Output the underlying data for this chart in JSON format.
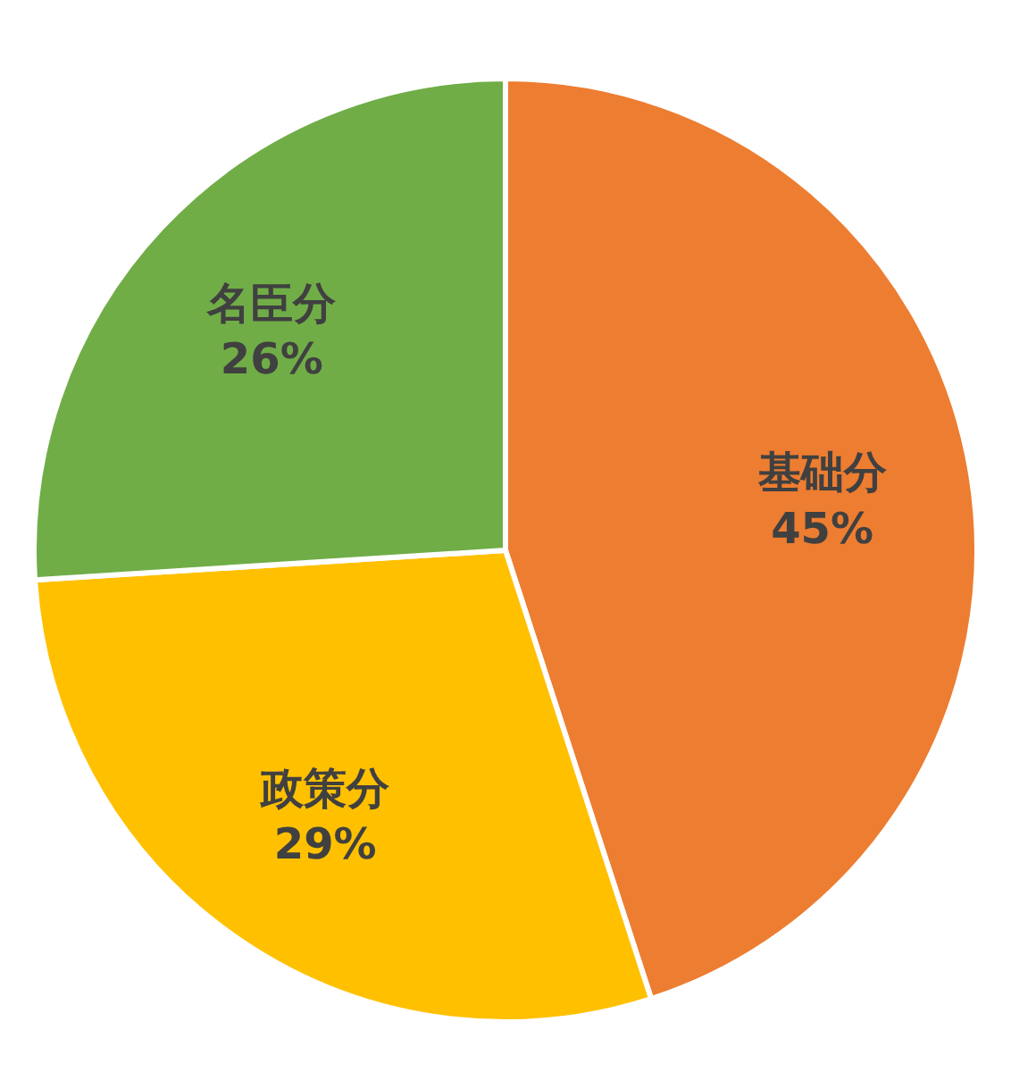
{
  "chart_data": {
    "type": "pie",
    "categories": [
      "基础分",
      "政策分",
      "名臣分"
    ],
    "values": [
      45,
      29,
      26
    ],
    "colors": [
      "#ed7d31",
      "#ffc000",
      "#70ad47"
    ],
    "value_labels": [
      "45%",
      "29%",
      "26%"
    ]
  }
}
